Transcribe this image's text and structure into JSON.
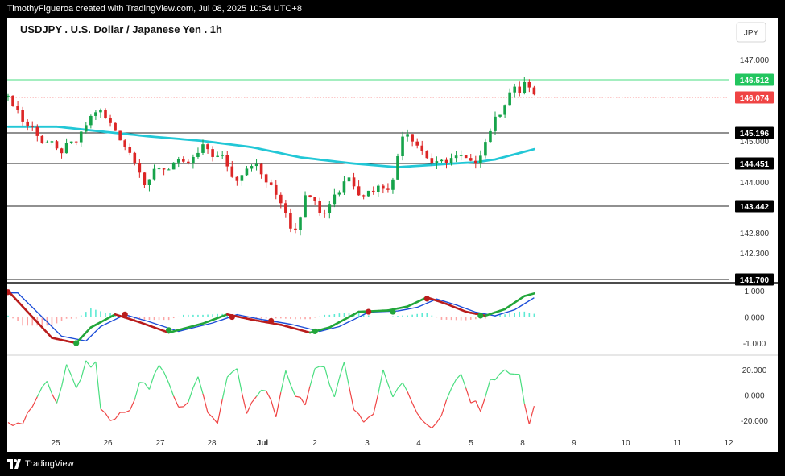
{
  "header": {
    "attribution": "TimothyFigueroa created with TradingView.com, Jul 08, 2025 10:54 UTC+8"
  },
  "footer": {
    "brand": "TradingView"
  },
  "chart_data": {
    "type": "candlestick-with-indicators",
    "title": "USDJPY . U.S. Dollar / Japanese Yen . 1h",
    "currency_button": "JPY",
    "x_ticks": [
      "25",
      "26",
      "27",
      "28",
      "Jul",
      "2",
      "3",
      "4",
      "5",
      "8",
      "9",
      "10",
      "11",
      "12"
    ],
    "price_axis": {
      "ticks": [
        "147.000",
        "145.000",
        "144.000",
        "142.800",
        "142.300"
      ],
      "labels": [
        {
          "text": "146.512",
          "value": 146.512,
          "kind": "level-green",
          "color": "#22c55e"
        },
        {
          "text": "146.074",
          "value": 146.074,
          "kind": "last-price",
          "color": "#ef4444"
        },
        {
          "text": "145.196",
          "value": 145.196,
          "kind": "level",
          "color": "#000000"
        },
        {
          "text": "144.451",
          "value": 144.451,
          "kind": "level",
          "color": "#000000"
        },
        {
          "text": "143.442",
          "value": 143.442,
          "kind": "level",
          "color": "#000000"
        },
        {
          "text": "141.700",
          "value": 141.7,
          "kind": "level",
          "color": "#000000"
        }
      ]
    },
    "price_anchors": [
      [
        0,
        146.1
      ],
      [
        2,
        145.9
      ],
      [
        4,
        145.4
      ],
      [
        6,
        145.3
      ],
      [
        8,
        144.9
      ],
      [
        9,
        145.0
      ],
      [
        11,
        144.7
      ],
      [
        13,
        144.9
      ],
      [
        15,
        145.0
      ],
      [
        17,
        145.5
      ],
      [
        19,
        145.8
      ],
      [
        21,
        145.5
      ],
      [
        23,
        145.2
      ],
      [
        25,
        144.8
      ],
      [
        27,
        144.5
      ],
      [
        29,
        143.8
      ],
      [
        31,
        144.4
      ],
      [
        33,
        144.3
      ],
      [
        35,
        144.5
      ],
      [
        37,
        144.4
      ],
      [
        39,
        144.6
      ],
      [
        41,
        144.9
      ],
      [
        43,
        144.6
      ],
      [
        45,
        144.6
      ],
      [
        47,
        144.0
      ],
      [
        49,
        144.3
      ],
      [
        51,
        144.5
      ],
      [
        53,
        144.1
      ],
      [
        55,
        143.8
      ],
      [
        57,
        143.5
      ],
      [
        58,
        143.2
      ],
      [
        59,
        142.8
      ],
      [
        60,
        143.0
      ],
      [
        62,
        143.8
      ],
      [
        64,
        143.6
      ],
      [
        65,
        143.2
      ],
      [
        66,
        143.3
      ],
      [
        67,
        143.7
      ],
      [
        69,
        143.8
      ],
      [
        70,
        144.2
      ],
      [
        72,
        143.9
      ],
      [
        73,
        143.7
      ],
      [
        75,
        143.8
      ],
      [
        77,
        143.9
      ],
      [
        79,
        143.9
      ],
      [
        80,
        144.1
      ],
      [
        81,
        145.0
      ],
      [
        82,
        145.3
      ],
      [
        84,
        145.0
      ],
      [
        86,
        144.7
      ],
      [
        88,
        144.4
      ],
      [
        90,
        144.5
      ],
      [
        92,
        144.6
      ],
      [
        94,
        144.6
      ],
      [
        96,
        144.4
      ],
      [
        98,
        144.8
      ],
      [
        100,
        145.4
      ],
      [
        102,
        145.8
      ],
      [
        104,
        146.3
      ],
      [
        106,
        146.2
      ],
      [
        107,
        146.6
      ],
      [
        108,
        146.07
      ]
    ],
    "moving_average": {
      "color": "#22c7d6",
      "anchors": [
        [
          0,
          145.35
        ],
        [
          10,
          145.35
        ],
        [
          20,
          145.22
        ],
        [
          30,
          145.1
        ],
        [
          40,
          145.0
        ],
        [
          50,
          144.85
        ],
        [
          60,
          144.6
        ],
        [
          70,
          144.46
        ],
        [
          80,
          144.36
        ],
        [
          90,
          144.44
        ],
        [
          96,
          144.48
        ],
        [
          100,
          144.55
        ],
        [
          108,
          144.8
        ]
      ]
    },
    "oscillator1": {
      "ticks": [
        "1.000",
        "0.000",
        "-1.000"
      ],
      "ylim": [
        -1.4,
        1.25
      ],
      "signal_color": "#22a63a",
      "macd_color": "#1d4ed8",
      "down_color": "#b91c1c",
      "anchors": [
        [
          0,
          1.0
        ],
        [
          5,
          0.0
        ],
        [
          9,
          -0.8
        ],
        [
          14,
          -1.0
        ],
        [
          17,
          -0.4
        ],
        [
          22,
          0.1
        ],
        [
          27,
          -0.2
        ],
        [
          33,
          -0.6
        ],
        [
          40,
          -0.25
        ],
        [
          45,
          0.1
        ],
        [
          50,
          -0.1
        ],
        [
          56,
          -0.3
        ],
        [
          62,
          -0.6
        ],
        [
          66,
          -0.4
        ],
        [
          72,
          0.2
        ],
        [
          78,
          0.25
        ],
        [
          82,
          0.4
        ],
        [
          86,
          0.75
        ],
        [
          90,
          0.5
        ],
        [
          94,
          0.2
        ],
        [
          98,
          0.05
        ],
        [
          102,
          0.3
        ],
        [
          106,
          0.8
        ],
        [
          108,
          0.9
        ]
      ],
      "dots": [
        {
          "i": 0,
          "v": 0.95,
          "c": "#b91c1c"
        },
        {
          "i": 14,
          "v": -1.0,
          "c": "#22a63a"
        },
        {
          "i": 24,
          "v": 0.1,
          "c": "#b91c1c"
        },
        {
          "i": 33,
          "v": -0.5,
          "c": "#22a63a"
        },
        {
          "i": 46,
          "v": 0.0,
          "c": "#b91c1c"
        },
        {
          "i": 54,
          "v": -0.15,
          "c": "#b91c1c"
        },
        {
          "i": 63,
          "v": -0.55,
          "c": "#22a63a"
        },
        {
          "i": 74,
          "v": 0.2,
          "c": "#b91c1c"
        },
        {
          "i": 79,
          "v": 0.2,
          "c": "#22a63a"
        },
        {
          "i": 86,
          "v": 0.7,
          "c": "#b91c1c"
        },
        {
          "i": 97,
          "v": 0.05,
          "c": "#22a63a"
        }
      ]
    },
    "oscillator2": {
      "ticks": [
        "20.000",
        "0.000",
        "-20.000"
      ],
      "ylim": [
        -30,
        30
      ],
      "up_color": "#4ade80",
      "down_color": "#ef4444",
      "anchors": [
        [
          0,
          -22
        ],
        [
          3,
          -22
        ],
        [
          5,
          -10
        ],
        [
          6,
          0
        ],
        [
          8,
          8
        ],
        [
          10,
          -5
        ],
        [
          12,
          22
        ],
        [
          14,
          5
        ],
        [
          16,
          24
        ],
        [
          18,
          24
        ],
        [
          19,
          -10
        ],
        [
          21,
          -20
        ],
        [
          23,
          -15
        ],
        [
          25,
          -12
        ],
        [
          27,
          10
        ],
        [
          29,
          5
        ],
        [
          31,
          23
        ],
        [
          33,
          10
        ],
        [
          35,
          -10
        ],
        [
          37,
          -5
        ],
        [
          39,
          15
        ],
        [
          41,
          -15
        ],
        [
          43,
          -20
        ],
        [
          45,
          15
        ],
        [
          47,
          18
        ],
        [
          49,
          -15
        ],
        [
          51,
          0
        ],
        [
          53,
          6
        ],
        [
          55,
          -20
        ],
        [
          57,
          20
        ],
        [
          59,
          0
        ],
        [
          61,
          -5
        ],
        [
          63,
          18
        ],
        [
          65,
          22
        ],
        [
          67,
          0
        ],
        [
          69,
          25
        ],
        [
          71,
          -10
        ],
        [
          73,
          -20
        ],
        [
          75,
          -15
        ],
        [
          77,
          18
        ],
        [
          79,
          0
        ],
        [
          81,
          12
        ],
        [
          83,
          -5
        ],
        [
          85,
          -22
        ],
        [
          87,
          -25
        ],
        [
          89,
          -15
        ],
        [
          91,
          5
        ],
        [
          93,
          15
        ],
        [
          95,
          -5
        ],
        [
          97,
          -10
        ],
        [
          99,
          10
        ],
        [
          101,
          18
        ],
        [
          103,
          17
        ],
        [
          105,
          15
        ],
        [
          106,
          -5
        ],
        [
          107,
          -22
        ],
        [
          108,
          -10
        ]
      ],
      "zero_color": "#9ca3af"
    }
  }
}
